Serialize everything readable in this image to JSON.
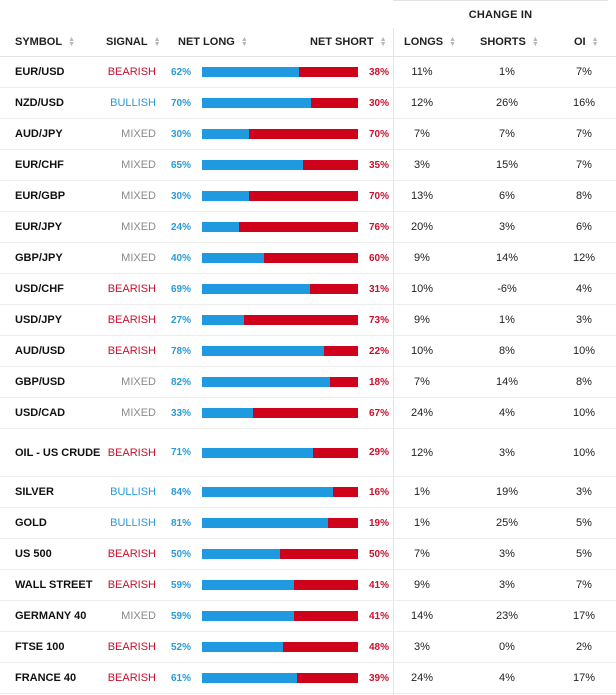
{
  "header": {
    "change_in": "CHANGE IN",
    "columns": {
      "symbol": "SYMBOL",
      "signal": "SIGNAL",
      "net_long": "NET LONG",
      "net_short": "NET SHORT",
      "longs": "LONGS",
      "shorts": "SHORTS",
      "oi": "OI"
    }
  },
  "colors": {
    "long_bar": "#1f9ae0",
    "short_bar": "#d0021b",
    "bearish": "#c8102e",
    "bullish": "#2a9ad8",
    "mixed": "#8a8a8a"
  },
  "rows": [
    {
      "symbol": "EUR/USD",
      "signal": "BEARISH",
      "long_pct": 62,
      "net_long": "62%",
      "net_short": "38%",
      "longs": "11%",
      "shorts": "1%",
      "oi": "7%"
    },
    {
      "symbol": "NZD/USD",
      "signal": "BULLISH",
      "long_pct": 70,
      "net_long": "70%",
      "net_short": "30%",
      "longs": "12%",
      "shorts": "26%",
      "oi": "16%"
    },
    {
      "symbol": "AUD/JPY",
      "signal": "MIXED",
      "long_pct": 30,
      "net_long": "30%",
      "net_short": "70%",
      "longs": "7%",
      "shorts": "7%",
      "oi": "7%"
    },
    {
      "symbol": "EUR/CHF",
      "signal": "MIXED",
      "long_pct": 65,
      "net_long": "65%",
      "net_short": "35%",
      "longs": "3%",
      "shorts": "15%",
      "oi": "7%"
    },
    {
      "symbol": "EUR/GBP",
      "signal": "MIXED",
      "long_pct": 30,
      "net_long": "30%",
      "net_short": "70%",
      "longs": "13%",
      "shorts": "6%",
      "oi": "8%"
    },
    {
      "symbol": "EUR/JPY",
      "signal": "MIXED",
      "long_pct": 24,
      "net_long": "24%",
      "net_short": "76%",
      "longs": "20%",
      "shorts": "3%",
      "oi": "6%"
    },
    {
      "symbol": "GBP/JPY",
      "signal": "MIXED",
      "long_pct": 40,
      "net_long": "40%",
      "net_short": "60%",
      "longs": "9%",
      "shorts": "14%",
      "oi": "12%"
    },
    {
      "symbol": "USD/CHF",
      "signal": "BEARISH",
      "long_pct": 69,
      "net_long": "69%",
      "net_short": "31%",
      "longs": "10%",
      "shorts": "-6%",
      "oi": "4%"
    },
    {
      "symbol": "USD/JPY",
      "signal": "BEARISH",
      "long_pct": 27,
      "net_long": "27%",
      "net_short": "73%",
      "longs": "9%",
      "shorts": "1%",
      "oi": "3%"
    },
    {
      "symbol": "AUD/USD",
      "signal": "BEARISH",
      "long_pct": 78,
      "net_long": "78%",
      "net_short": "22%",
      "longs": "10%",
      "shorts": "8%",
      "oi": "10%"
    },
    {
      "symbol": "GBP/USD",
      "signal": "MIXED",
      "long_pct": 82,
      "net_long": "82%",
      "net_short": "18%",
      "longs": "7%",
      "shorts": "14%",
      "oi": "8%"
    },
    {
      "symbol": "USD/CAD",
      "signal": "MIXED",
      "long_pct": 33,
      "net_long": "33%",
      "net_short": "67%",
      "longs": "24%",
      "shorts": "4%",
      "oi": "10%"
    },
    {
      "symbol": "OIL - US CRUDE",
      "signal": "BEARISH",
      "long_pct": 71,
      "net_long": "71%",
      "net_short": "29%",
      "longs": "12%",
      "shorts": "3%",
      "oi": "10%"
    },
    {
      "symbol": "SILVER",
      "signal": "BULLISH",
      "long_pct": 84,
      "net_long": "84%",
      "net_short": "16%",
      "longs": "1%",
      "shorts": "19%",
      "oi": "3%"
    },
    {
      "symbol": "GOLD",
      "signal": "BULLISH",
      "long_pct": 81,
      "net_long": "81%",
      "net_short": "19%",
      "longs": "1%",
      "shorts": "25%",
      "oi": "5%"
    },
    {
      "symbol": "US 500",
      "signal": "BEARISH",
      "long_pct": 50,
      "net_long": "50%",
      "net_short": "50%",
      "longs": "7%",
      "shorts": "3%",
      "oi": "5%"
    },
    {
      "symbol": "WALL STREET",
      "signal": "BEARISH",
      "long_pct": 59,
      "net_long": "59%",
      "net_short": "41%",
      "longs": "9%",
      "shorts": "3%",
      "oi": "7%"
    },
    {
      "symbol": "GERMANY 40",
      "signal": "MIXED",
      "long_pct": 59,
      "net_long": "59%",
      "net_short": "41%",
      "longs": "14%",
      "shorts": "23%",
      "oi": "17%"
    },
    {
      "symbol": "FTSE 100",
      "signal": "BEARISH",
      "long_pct": 52,
      "net_long": "52%",
      "net_short": "48%",
      "longs": "3%",
      "shorts": "0%",
      "oi": "2%"
    },
    {
      "symbol": "FRANCE 40",
      "signal": "BEARISH",
      "long_pct": 61,
      "net_long": "61%",
      "net_short": "39%",
      "longs": "24%",
      "shorts": "4%",
      "oi": "17%"
    }
  ]
}
